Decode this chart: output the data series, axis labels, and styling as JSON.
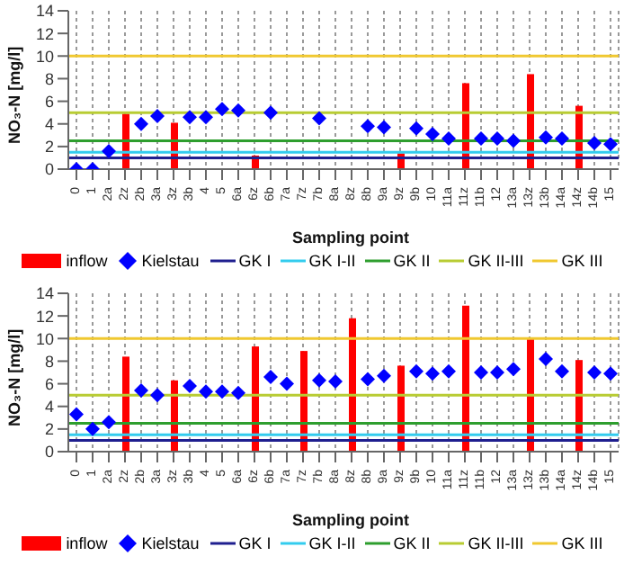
{
  "chart_data": [
    {
      "type": "bar",
      "ylabel": "NO₃-N [mg/l]",
      "xlabel": "Sampling point",
      "categories": [
        "0",
        "1",
        "2a",
        "2z",
        "2b",
        "3a",
        "3z",
        "3b",
        "4",
        "5",
        "6a",
        "6z",
        "6b",
        "7a",
        "7z",
        "7b",
        "8a",
        "8z",
        "8b",
        "9a",
        "9z",
        "9b",
        "10",
        "11a",
        "11z",
        "11b",
        "12",
        "13a",
        "13z",
        "13b",
        "14a",
        "14z",
        "14b",
        "15"
      ],
      "series": [
        {
          "name": "inflow",
          "color": "#ff0000",
          "values": [
            null,
            null,
            null,
            4.9,
            null,
            null,
            4.1,
            null,
            null,
            null,
            null,
            1.2,
            null,
            null,
            null,
            null,
            null,
            null,
            null,
            null,
            1.4,
            null,
            null,
            null,
            7.6,
            null,
            null,
            null,
            8.4,
            null,
            null,
            5.6,
            null,
            null
          ]
        },
        {
          "name": "Kielstau",
          "type": "scatter",
          "marker": "diamond",
          "color": "#0000ff",
          "values": [
            0,
            0,
            1.6,
            null,
            4.0,
            4.7,
            null,
            4.6,
            4.6,
            5.3,
            5.2,
            null,
            5.0,
            null,
            null,
            4.5,
            null,
            null,
            3.8,
            3.7,
            null,
            3.6,
            3.1,
            2.7,
            null,
            2.7,
            2.7,
            2.5,
            null,
            2.8,
            2.7,
            null,
            2.3,
            2.2
          ]
        }
      ],
      "ref_lines": [
        {
          "axis": "y",
          "value": 1,
          "label": "GK I",
          "color": "#1f1f8f"
        },
        {
          "axis": "y",
          "value": 1.5,
          "label": "GK I-II",
          "color": "#33ccee"
        },
        {
          "axis": "y",
          "value": 2.5,
          "label": "GK II",
          "color": "#2e9e2e"
        },
        {
          "axis": "y",
          "value": 5,
          "label": "GK II-III",
          "color": "#b8cc33"
        },
        {
          "axis": "y",
          "value": 10,
          "label": "GK III",
          "color": "#f0c830"
        }
      ],
      "ylim": [
        0,
        14
      ],
      "yticks": [
        0,
        2,
        4,
        6,
        8,
        10,
        12,
        14
      ],
      "grid": "x",
      "legend": "bottom"
    },
    {
      "type": "bar",
      "ylabel": "NO₃-N [mg/l]",
      "xlabel": "Sampling point",
      "categories": [
        "0",
        "1",
        "2a",
        "2z",
        "2b",
        "3a",
        "3z",
        "3b",
        "4",
        "5",
        "6a",
        "6z",
        "6b",
        "7a",
        "7z",
        "7b",
        "8a",
        "8z",
        "8b",
        "9a",
        "9z",
        "9b",
        "10",
        "11a",
        "11z",
        "11b",
        "12",
        "13a",
        "13z",
        "13b",
        "14a",
        "14z",
        "14b",
        "15"
      ],
      "series": [
        {
          "name": "inflow",
          "color": "#ff0000",
          "values": [
            null,
            null,
            null,
            8.4,
            null,
            null,
            6.3,
            null,
            null,
            null,
            null,
            9.3,
            null,
            null,
            8.9,
            null,
            null,
            11.8,
            null,
            null,
            7.6,
            null,
            null,
            null,
            12.9,
            null,
            null,
            null,
            10.0,
            null,
            null,
            8.1,
            null,
            null
          ]
        },
        {
          "name": "Kielstau",
          "type": "scatter",
          "marker": "diamond",
          "color": "#0000ff",
          "values": [
            3.3,
            2.0,
            2.6,
            null,
            5.4,
            5.0,
            null,
            5.8,
            5.3,
            5.3,
            5.2,
            null,
            6.6,
            6.0,
            null,
            6.3,
            6.2,
            null,
            6.4,
            6.7,
            null,
            7.1,
            6.9,
            7.1,
            null,
            7.0,
            7.0,
            7.3,
            null,
            8.2,
            7.1,
            null,
            7.0,
            6.9
          ]
        }
      ],
      "ref_lines": [
        {
          "axis": "y",
          "value": 1,
          "label": "GK I",
          "color": "#1f1f8f"
        },
        {
          "axis": "y",
          "value": 1.5,
          "label": "GK I-II",
          "color": "#33ccee"
        },
        {
          "axis": "y",
          "value": 2.5,
          "label": "GK II",
          "color": "#2e9e2e"
        },
        {
          "axis": "y",
          "value": 5,
          "label": "GK II-III",
          "color": "#b8cc33"
        },
        {
          "axis": "y",
          "value": 10,
          "label": "GK III",
          "color": "#f0c830"
        }
      ],
      "ylim": [
        0,
        14
      ],
      "yticks": [
        0,
        2,
        4,
        6,
        8,
        10,
        12,
        14
      ],
      "grid": "x",
      "legend": "bottom"
    }
  ]
}
